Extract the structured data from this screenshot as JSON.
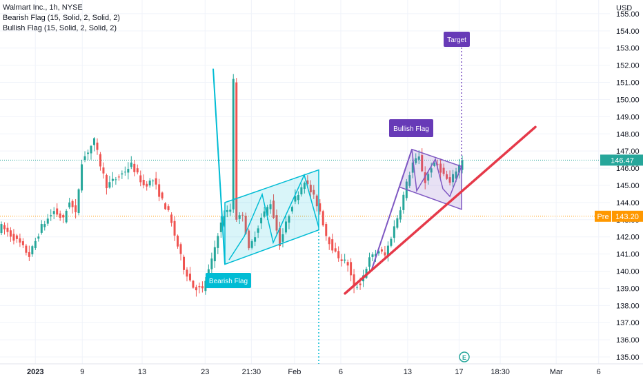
{
  "legend": {
    "symbol_line": "Walmart Inc., 1h, NYSE",
    "indicator_1": "Bearish Flag (15, Solid, 2, Solid, 2)",
    "indicator_2": "Bullish Flag (15, Solid, 2, Solid, 2)"
  },
  "currency": "USD",
  "price_labels": {
    "last": "146.47",
    "pre_tag": "Pre",
    "pre_value": "143.20"
  },
  "annotations": {
    "bearish": "Bearish Flag",
    "bullish": "Bullish Flag",
    "target": "Target"
  },
  "logo_letter": "E",
  "colors": {
    "up": "#26a69a",
    "down": "#ef5350",
    "bear_flag": "#00bcd4",
    "bull_flag": "#7e57c2",
    "trendline": "#e53949",
    "last_price": "#26a69a",
    "pre_price": "#ff9800"
  },
  "chart_data": {
    "type": "candlestick",
    "title": "Walmart Inc., 1h, NYSE",
    "y_axis": {
      "unit": "USD",
      "ylim": [
        134.6,
        155.8
      ],
      "ticks": [
        "135.00",
        "136.00",
        "137.00",
        "138.00",
        "139.00",
        "140.00",
        "141.00",
        "142.00",
        "143.00",
        "144.00",
        "145.00",
        "146.00",
        "147.00",
        "148.00",
        "149.00",
        "150.00",
        "151.00",
        "152.00",
        "153.00",
        "154.00",
        "155.00"
      ]
    },
    "x_axis": {
      "ticks": [
        {
          "label": "2023",
          "bold": true,
          "t": 0.055
        },
        {
          "label": "9",
          "t": 0.128
        },
        {
          "label": "13",
          "t": 0.221
        },
        {
          "label": "23",
          "t": 0.319
        },
        {
          "label": "21:30",
          "t": 0.391
        },
        {
          "label": "Feb",
          "t": 0.458
        },
        {
          "label": "6",
          "t": 0.53
        },
        {
          "label": "13",
          "t": 0.634
        },
        {
          "label": "17",
          "t": 0.714
        },
        {
          "label": "18:30",
          "t": 0.778
        },
        {
          "label": "Mar",
          "t": 0.865
        },
        {
          "label": "6",
          "t": 0.931
        }
      ]
    },
    "candle_count": 150,
    "price_path": [
      [
        0,
        142.6
      ],
      [
        6,
        141.6
      ],
      [
        9,
        140.9
      ],
      [
        13,
        142.6
      ],
      [
        17,
        143.5
      ],
      [
        20,
        143.0
      ],
      [
        22,
        144.1
      ],
      [
        24,
        143.3
      ],
      [
        26,
        146.4
      ],
      [
        30,
        147.6
      ],
      [
        32,
        146.2
      ],
      [
        34,
        145.0
      ],
      [
        38,
        145.5
      ],
      [
        42,
        146.2
      ],
      [
        46,
        145.0
      ],
      [
        49,
        145.3
      ],
      [
        52,
        144.1
      ],
      [
        54,
        143.4
      ],
      [
        56,
        142.1
      ],
      [
        59,
        140.2
      ],
      [
        62,
        139.1
      ],
      [
        65,
        138.9
      ],
      [
        68,
        140.6
      ],
      [
        70,
        142.2
      ],
      [
        72,
        143.3
      ],
      [
        74,
        143.6
      ],
      [
        75,
        151.3
      ],
      [
        76,
        142.9
      ],
      [
        78,
        143.4
      ],
      [
        80,
        141.2
      ],
      [
        84,
        143.1
      ],
      [
        87,
        144.0
      ],
      [
        90,
        141.6
      ],
      [
        94,
        143.9
      ],
      [
        98,
        145.3
      ],
      [
        101,
        144.3
      ],
      [
        103,
        143.5
      ],
      [
        105,
        142.1
      ],
      [
        108,
        141.0
      ],
      [
        112,
        140.4
      ],
      [
        114,
        139.0
      ],
      [
        116,
        139.3
      ],
      [
        119,
        140.7
      ],
      [
        122,
        141.2
      ],
      [
        124,
        140.9
      ],
      [
        126,
        142.0
      ],
      [
        129,
        143.7
      ],
      [
        131,
        145.1
      ],
      [
        133,
        146.3
      ],
      [
        135,
        146.6
      ],
      [
        137,
        145.2
      ],
      [
        139,
        146.1
      ],
      [
        141,
        146.2
      ],
      [
        143,
        145.6
      ],
      [
        145,
        145.1
      ],
      [
        147,
        145.9
      ],
      [
        149,
        146.47
      ]
    ],
    "overlays": {
      "bearish_flag": {
        "pole": [
          {
            "x": "Jan 23",
            "y": 151.8
          },
          {
            "x": "Jan 24",
            "y": 140.4
          }
        ],
        "channel_upper": [
          {
            "x": "Jan 24",
            "y": 144.0
          },
          {
            "x": "Feb 3",
            "y": 145.9
          }
        ],
        "channel_lower": [
          {
            "x": "Jan 24",
            "y": 140.4
          },
          {
            "x": "Feb 3",
            "y": 142.4
          }
        ],
        "target_direction": "down"
      },
      "bullish_flag": {
        "pole": [
          {
            "x": "Feb 10",
            "y": 140.0
          },
          {
            "x": "Feb 14",
            "y": 147.1
          }
        ],
        "channel_upper": [
          {
            "x": "Feb 14",
            "y": 147.1
          },
          {
            "x": "Feb 17",
            "y": 146.1
          }
        ],
        "channel_lower": [
          {
            "x": "Feb 13",
            "y": 144.9
          },
          {
            "x": "Feb 17",
            "y": 143.6
          }
        ],
        "target": 153.4
      },
      "trendline": [
        {
          "x": "Feb 7",
          "y": 138.7
        },
        {
          "x": "Mar 2",
          "y": 148.4
        }
      ]
    },
    "last_price": 146.47,
    "pre_market_price": 143.2
  }
}
